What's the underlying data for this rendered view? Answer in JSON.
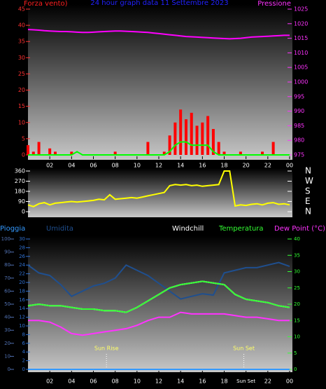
{
  "chart_data": [
    {
      "type": "bar",
      "title": "24 hour graph data 11 Settembre 2023",
      "ylabel": "Forza vento)",
      "y2label": "Pressione",
      "xlim": [
        0,
        24
      ],
      "xticks": [
        {
          "value": 2,
          "label": "02"
        },
        {
          "value": 4,
          "label": "04"
        },
        {
          "value": 6,
          "label": "06"
        },
        {
          "value": 8,
          "label": "08"
        },
        10,
        12,
        14,
        16,
        18,
        20,
        22,
        {
          "value": 24,
          "label": "00"
        }
      ],
      "ylim": [
        0,
        45
      ],
      "yticks": [
        0,
        5,
        10,
        15,
        20,
        25,
        30,
        35,
        40,
        45
      ],
      "y2lim": [
        975,
        1025
      ],
      "y2ticks": [
        975,
        980,
        985,
        990,
        995,
        1000,
        1005,
        1010,
        1015,
        1020,
        1025
      ],
      "x": [
        0,
        0.5,
        1,
        1.5,
        2,
        2.5,
        3,
        3.5,
        4,
        4.5,
        5,
        5.5,
        6,
        6.5,
        7,
        7.5,
        8,
        8.5,
        9,
        9.5,
        10,
        10.5,
        11,
        11.5,
        12,
        12.5,
        13,
        13.5,
        14,
        14.5,
        15,
        15.5,
        16,
        16.5,
        17,
        17.5,
        18,
        18.5,
        19,
        19.5,
        20,
        20.5,
        21,
        21.5,
        22,
        22.5,
        23,
        23.5,
        24
      ],
      "series": [
        {
          "type": "bar",
          "color": "#ff0000",
          "values": [
            3,
            1,
            4,
            0,
            2,
            1,
            0,
            0,
            1,
            0,
            0,
            0,
            0,
            0,
            0,
            0,
            1,
            0,
            0,
            0,
            0,
            0,
            4,
            0,
            0,
            1,
            6,
            10,
            14,
            11,
            13,
            9,
            10,
            12,
            8,
            4,
            1,
            0,
            0,
            1,
            0,
            0,
            0,
            1,
            0,
            4,
            0,
            0,
            0
          ]
        },
        {
          "type": "line",
          "color": "#00ff00",
          "values": [
            0,
            0,
            0,
            0,
            0,
            0,
            0,
            0,
            0,
            1,
            0,
            0,
            0,
            0,
            0,
            0,
            0,
            0,
            0,
            0,
            0,
            0,
            0,
            0,
            0,
            0,
            1,
            3,
            4,
            4,
            3,
            3,
            3,
            3,
            1,
            0,
            0,
            0,
            0,
            0,
            0,
            0,
            0,
            0,
            0,
            0,
            0,
            0,
            0
          ]
        },
        {
          "type": "line",
          "color": "#ff00ff",
          "axis": "y2",
          "values": [
            1018,
            1017.9,
            1017.8,
            1017.6,
            1017.5,
            1017.4,
            1017.3,
            1017.3,
            1017.2,
            1017.1,
            1017.0,
            1017.0,
            1017.1,
            1017.2,
            1017.3,
            1017.4,
            1017.5,
            1017.5,
            1017.4,
            1017.3,
            1017.2,
            1017.1,
            1017.0,
            1016.8,
            1016.6,
            1016.4,
            1016.2,
            1016.0,
            1015.8,
            1015.6,
            1015.5,
            1015.4,
            1015.3,
            1015.2,
            1015.1,
            1015.0,
            1014.9,
            1014.8,
            1014.9,
            1015.0,
            1015.2,
            1015.4,
            1015.5,
            1015.6,
            1015.7,
            1015.8,
            1015.9,
            1016.0,
            1016.0
          ]
        }
      ]
    },
    {
      "type": "line",
      "xlim": [
        0,
        24
      ],
      "ylim": [
        0,
        360
      ],
      "yticks": [
        0,
        90,
        180,
        270,
        360
      ],
      "y2lim": [
        0,
        360
      ],
      "y2ticks": [
        {
          "value": 0,
          "label": "N"
        },
        {
          "value": 90,
          "label": "E"
        },
        {
          "value": 180,
          "label": "S"
        },
        {
          "value": 270,
          "label": "W"
        },
        {
          "value": 360,
          "label": "N"
        }
      ],
      "x": [
        0,
        0.5,
        1,
        1.5,
        2,
        2.5,
        3,
        3.5,
        4,
        4.5,
        5,
        5.5,
        6,
        6.5,
        7,
        7.5,
        8,
        8.5,
        9,
        9.5,
        10,
        10.5,
        11,
        11.5,
        12,
        12.5,
        13,
        13.5,
        14,
        14.5,
        15,
        15.5,
        16,
        16.5,
        17,
        17.5,
        18,
        18.5,
        19,
        19.5,
        20,
        20.5,
        21,
        21.5,
        22,
        22.5,
        23,
        23.5,
        24
      ],
      "series": [
        {
          "type": "line",
          "color": "#ffff00",
          "values": [
            60,
            45,
            70,
            80,
            60,
            75,
            80,
            85,
            90,
            85,
            90,
            95,
            100,
            110,
            105,
            150,
            110,
            115,
            120,
            125,
            120,
            130,
            140,
            150,
            160,
            170,
            230,
            240,
            235,
            240,
            230,
            235,
            225,
            230,
            235,
            240,
            360,
            360,
            50,
            60,
            55,
            65,
            70,
            60,
            75,
            80,
            65,
            70,
            60
          ]
        }
      ]
    },
    {
      "type": "line",
      "xlim": [
        0,
        24
      ],
      "xticks": [
        {
          "value": 2,
          "label": "02"
        },
        {
          "value": 4,
          "label": "04"
        },
        {
          "value": 6,
          "label": "06"
        },
        {
          "value": 8,
          "label": "08"
        },
        10,
        12,
        14,
        16,
        18,
        {
          "value": 20,
          "label": "Sun Set"
        },
        22,
        {
          "value": 24,
          "label": "00"
        }
      ],
      "ylim": [
        0,
        100
      ],
      "yticks": [
        0,
        10,
        20,
        30,
        40,
        50,
        60,
        70,
        80,
        90,
        100
      ],
      "y3lim": [
        0,
        30
      ],
      "y3ticks": [
        0,
        2,
        4,
        6,
        8,
        10,
        12,
        14,
        16,
        18,
        20,
        22,
        24,
        26,
        28,
        30
      ],
      "y2lim": [
        0,
        40
      ],
      "y2ticks": [
        0,
        5,
        10,
        15,
        20,
        25,
        30,
        35,
        40
      ],
      "annotations": [
        {
          "label": "Sun Rise",
          "x": 7.2
        },
        {
          "label": "Sun Set",
          "x": 19.8
        }
      ],
      "x": [
        0,
        1,
        2,
        3,
        4,
        5,
        6,
        7,
        8,
        9,
        10,
        11,
        12,
        13,
        14,
        15,
        16,
        17,
        18,
        19,
        20,
        21,
        22,
        23,
        24
      ],
      "series": [
        {
          "name": "Pioggia",
          "type": "line",
          "color": "#3399ff",
          "axis": "y3",
          "values": [
            0,
            0,
            0,
            0,
            0,
            0,
            0,
            0,
            0,
            0,
            0,
            0,
            0,
            0,
            0,
            0,
            0,
            0,
            0,
            0,
            0,
            0,
            0,
            0,
            0
          ]
        },
        {
          "name": "Umidita",
          "type": "line",
          "color": "#1f4f8f",
          "values": [
            80,
            74,
            72,
            65,
            56,
            60,
            64,
            66,
            70,
            80,
            76,
            72,
            66,
            60,
            54,
            56,
            58,
            57,
            74,
            76,
            78,
            78,
            80,
            82,
            79
          ]
        },
        {
          "name": "Windchill",
          "type": "line",
          "color": "#ffffff",
          "axis": "y2",
          "values": [
            19.5,
            20,
            19.5,
            19.5,
            19,
            18.5,
            18.5,
            18,
            18,
            17.5,
            19,
            21,
            23,
            25,
            26,
            26.5,
            27,
            26.5,
            26,
            23,
            21.5,
            21,
            20.5,
            19.5,
            19
          ]
        },
        {
          "name": "Temperatura",
          "type": "line",
          "color": "#33ff33",
          "axis": "y2",
          "values": [
            19.5,
            20,
            19.5,
            19.5,
            19,
            18.5,
            18.5,
            18,
            18,
            17.5,
            19,
            21,
            23,
            25,
            26,
            26.5,
            27,
            26.5,
            26,
            23,
            21.5,
            21,
            20.5,
            19.5,
            19
          ]
        },
        {
          "name": "Dew Point (°C)",
          "type": "line",
          "color": "#ff33ff",
          "axis": "y2",
          "values": [
            15,
            15,
            14.5,
            13,
            11,
            10.5,
            11,
            11.5,
            12,
            12.5,
            13.5,
            15,
            16,
            16,
            17.5,
            17,
            17,
            17,
            17,
            16.5,
            16,
            16,
            15.5,
            15,
            15
          ]
        }
      ]
    }
  ]
}
